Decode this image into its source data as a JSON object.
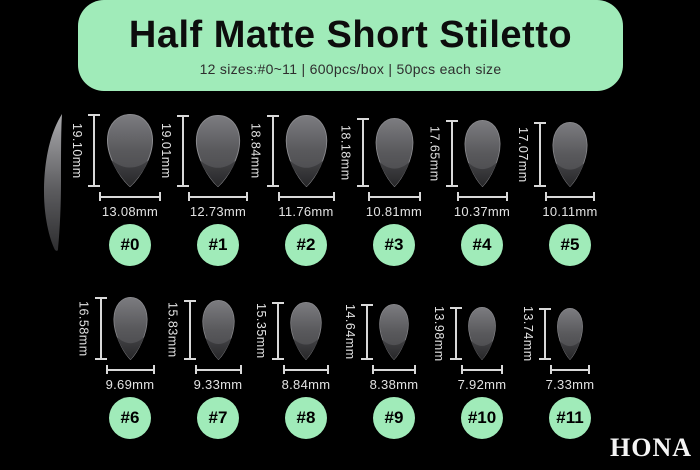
{
  "header": {
    "title": "Half Matte Short Stiletto",
    "subtitle": "12 sizes:#0~11  |  600pcs/box  |  50pcs each size",
    "bg_color": "#a0ebb9",
    "title_color": "#0d0d0d",
    "subtitle_color": "#2e2e2e"
  },
  "brand": {
    "logo": "HONA"
  },
  "colors": {
    "background": "#000000",
    "badge_green": "#a0ebb9",
    "badge_text": "#000000",
    "dimension_line": "#d9d9d9",
    "measure_text": "#e2e2e2"
  },
  "unit": "mm",
  "side_view": {
    "name": "side-profile-nail"
  },
  "sizes": [
    {
      "label": "#0",
      "height": "19.10mm",
      "width": "13.08mm",
      "height_mm": 19.1,
      "width_mm": 13.08
    },
    {
      "label": "#1",
      "height": "19.01mm",
      "width": "12.73mm",
      "height_mm": 19.01,
      "width_mm": 12.73
    },
    {
      "label": "#2",
      "height": "18.84mm",
      "width": "11.76mm",
      "height_mm": 18.84,
      "width_mm": 11.76
    },
    {
      "label": "#3",
      "height": "18.18mm",
      "width": "10.81mm",
      "height_mm": 18.18,
      "width_mm": 10.81
    },
    {
      "label": "#4",
      "height": "17.65mm",
      "width": "10.37mm",
      "height_mm": 17.65,
      "width_mm": 10.37
    },
    {
      "label": "#5",
      "height": "17.07mm",
      "width": "10.11mm",
      "height_mm": 17.07,
      "width_mm": 10.11
    },
    {
      "label": "#6",
      "height": "16.58mm",
      "width": "9.69mm",
      "height_mm": 16.58,
      "width_mm": 9.69
    },
    {
      "label": "#7",
      "height": "15.83mm",
      "width": "9.33mm",
      "height_mm": 15.83,
      "width_mm": 9.33
    },
    {
      "label": "#8",
      "height": "15.35mm",
      "width": "8.84mm",
      "height_mm": 15.35,
      "width_mm": 8.84
    },
    {
      "label": "#9",
      "height": "14.64mm",
      "width": "8.38mm",
      "height_mm": 14.64,
      "width_mm": 8.38
    },
    {
      "label": "#10",
      "height": "13.98mm",
      "width": "7.92mm",
      "height_mm": 13.98,
      "width_mm": 7.92
    },
    {
      "label": "#11",
      "height": "13.74mm",
      "width": "7.33mm",
      "height_mm": 13.74,
      "width_mm": 7.33
    }
  ]
}
